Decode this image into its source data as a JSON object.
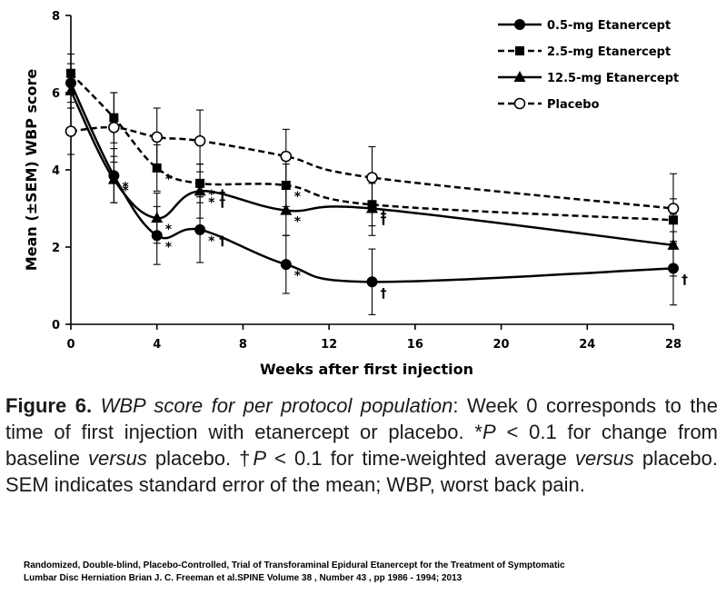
{
  "chart_data": {
    "type": "line",
    "xlabel": "Weeks after first injection",
    "ylabel": "Mean (±SEM) WBP score",
    "xlim": [
      0,
      28
    ],
    "ylim": [
      0,
      8
    ],
    "xticks": [
      0,
      4,
      8,
      12,
      16,
      20,
      24,
      28
    ],
    "yticks": [
      0,
      2,
      4,
      6,
      8
    ],
    "legend_position": "top-right",
    "grid": false,
    "series": [
      {
        "name": "0.5-mg Etanercept",
        "line": "solid",
        "marker": "circle-filled",
        "x": [
          0,
          2,
          4,
          6,
          10,
          14,
          28
        ],
        "y": [
          6.25,
          3.85,
          2.3,
          2.45,
          1.55,
          1.1,
          1.45
        ],
        "error": [
          0.5,
          0.7,
          0.75,
          0.85,
          0.75,
          0.85,
          0.95
        ],
        "annotations": [
          "",
          "*",
          "*",
          "* †",
          "*",
          "†",
          "†"
        ]
      },
      {
        "name": "2.5-mg Etanercept",
        "line": "dashed",
        "marker": "square-filled",
        "x": [
          0,
          2,
          4,
          6,
          10,
          14,
          28
        ],
        "y": [
          6.5,
          5.35,
          4.05,
          3.65,
          3.6,
          3.1,
          2.7
        ],
        "error": [
          0.5,
          0.65,
          0.6,
          0.5,
          0.55,
          0.55,
          0.55
        ],
        "annotations": [
          "",
          "",
          "*",
          "* †",
          "*",
          "†",
          ""
        ]
      },
      {
        "name": "12.5-mg Etanercept",
        "line": "solid",
        "marker": "triangle-filled",
        "x": [
          0,
          2,
          4,
          6,
          10,
          14,
          28
        ],
        "y": [
          6.05,
          3.75,
          2.75,
          3.45,
          2.95,
          3.0,
          2.05
        ],
        "error": [
          0.45,
          0.6,
          0.65,
          0.7,
          0.65,
          0.7,
          0.8
        ],
        "annotations": [
          "",
          "*",
          "*",
          "* †",
          "*",
          "†",
          ""
        ]
      },
      {
        "name": "Placebo",
        "line": "dashed",
        "marker": "circle-open",
        "x": [
          0,
          2,
          4,
          6,
          10,
          14,
          28
        ],
        "y": [
          5.0,
          5.1,
          4.85,
          4.75,
          4.35,
          3.8,
          3.0
        ],
        "error": [
          0.6,
          0.9,
          0.75,
          0.8,
          0.7,
          0.8,
          0.9
        ],
        "annotations": [
          "",
          "",
          "",
          "",
          "",
          "",
          ""
        ]
      }
    ]
  },
  "caption": {
    "label": "Figure 6.",
    "title": "WBP score for per protocol population",
    "body_1": ": Week 0 corresponds to the time of first injection with etanercept or placebo. *",
    "p1": "P",
    "body_2": " < 0.1 for change from baseline ",
    "versus1": "versus",
    "body_3": " placebo. †",
    "p2": "P",
    "body_4": " < 0.1 for time-weighted average ",
    "versus2": "versus",
    "body_5": " placebo. SEM indicates standard error of the mean; WBP, worst back pain."
  },
  "source": {
    "line1": "Randomized, Double-blind, Placebo-Controlled, Trial of Transforaminal Epidural Etanercept for the Treatment of Symptomatic",
    "line2": "Lumbar Disc Herniation Brian J. C. Freeman et al.SPINE Volume 38 , Number 43 , pp  1986 - 1994; 2013"
  }
}
